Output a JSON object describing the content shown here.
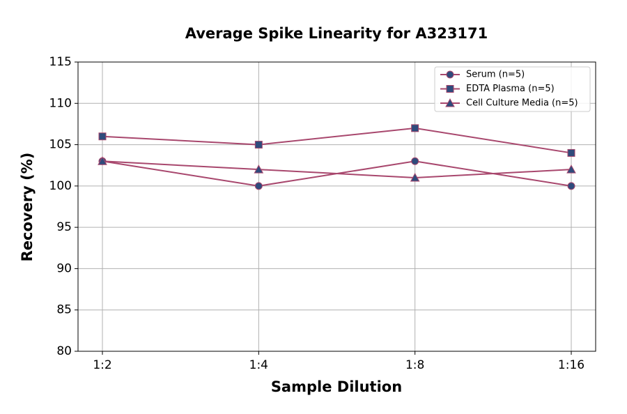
{
  "chart_data": {
    "type": "line",
    "title": "Average Spike Linearity for A323171",
    "x_label": "Sample Dilution",
    "y_label": "Recovery (%)",
    "categories": [
      "1:2",
      "1:4",
      "1:8",
      "1:16"
    ],
    "series": [
      {
        "name": "Serum (n=5)",
        "color": "#a8476d",
        "marker": "circle",
        "marker_color": "#2f4b7c",
        "values": [
          103,
          100,
          103,
          100
        ]
      },
      {
        "name": "EDTA Plasma (n=5)",
        "color": "#a8476d",
        "marker": "square",
        "marker_color": "#2f4b7c",
        "values": [
          106,
          105,
          107,
          104
        ]
      },
      {
        "name": "Cell Culture Media (n=5)",
        "color": "#a8476d",
        "marker": "triangle",
        "marker_color": "#2f4b7c",
        "values": [
          103,
          102,
          101,
          102
        ]
      }
    ],
    "ylim": [
      80,
      115
    ],
    "yticks": [
      80,
      85,
      90,
      95,
      100,
      105,
      110,
      115
    ],
    "grid": true,
    "legend": "upper right"
  }
}
